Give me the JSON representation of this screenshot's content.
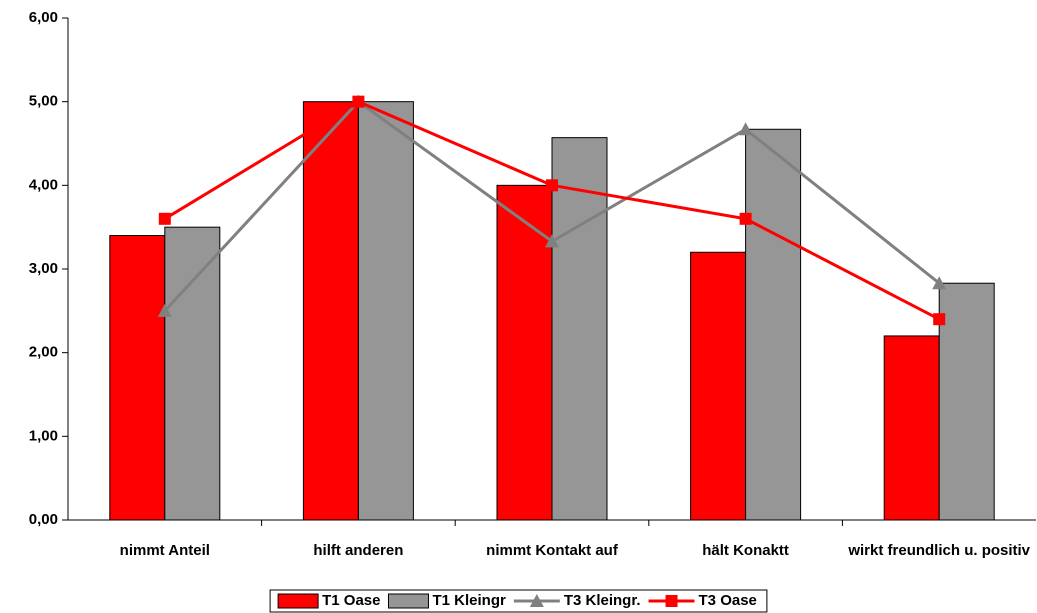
{
  "chart_data": {
    "type": "bar-line",
    "categories": [
      "nimmt Anteil",
      "hilft anderen",
      "nimmt Kontakt auf",
      "hält Konaktt",
      "wirkt freundlich u. positiv"
    ],
    "series": [
      {
        "name": "T1 Oase",
        "kind": "bar",
        "color": "#ff0000",
        "values": [
          3.4,
          5.0,
          4.0,
          3.2,
          2.2
        ]
      },
      {
        "name": "T1 Kleingr",
        "kind": "bar",
        "color": "#969696",
        "values": [
          3.5,
          5.0,
          4.57,
          4.67,
          2.83
        ]
      },
      {
        "name": "T3 Kleingr.",
        "kind": "line",
        "marker": "triangle",
        "color": "#808080",
        "values": [
          2.5,
          5.0,
          3.33,
          4.67,
          2.83
        ]
      },
      {
        "name": "T3 Oase",
        "kind": "line",
        "marker": "square",
        "color": "#ff0000",
        "values": [
          3.6,
          5.0,
          4.0,
          3.6,
          2.4
        ]
      }
    ],
    "ylim": [
      0,
      6
    ],
    "yticks": [
      {
        "value": 0,
        "label": "0,00"
      },
      {
        "value": 1,
        "label": "1,00"
      },
      {
        "value": 2,
        "label": "2,00"
      },
      {
        "value": 3,
        "label": "3,00"
      },
      {
        "value": 4,
        "label": "4,00"
      },
      {
        "value": 5,
        "label": "5,00"
      },
      {
        "value": 6,
        "label": "6,00"
      }
    ],
    "grid": false,
    "legend": "bottom"
  }
}
